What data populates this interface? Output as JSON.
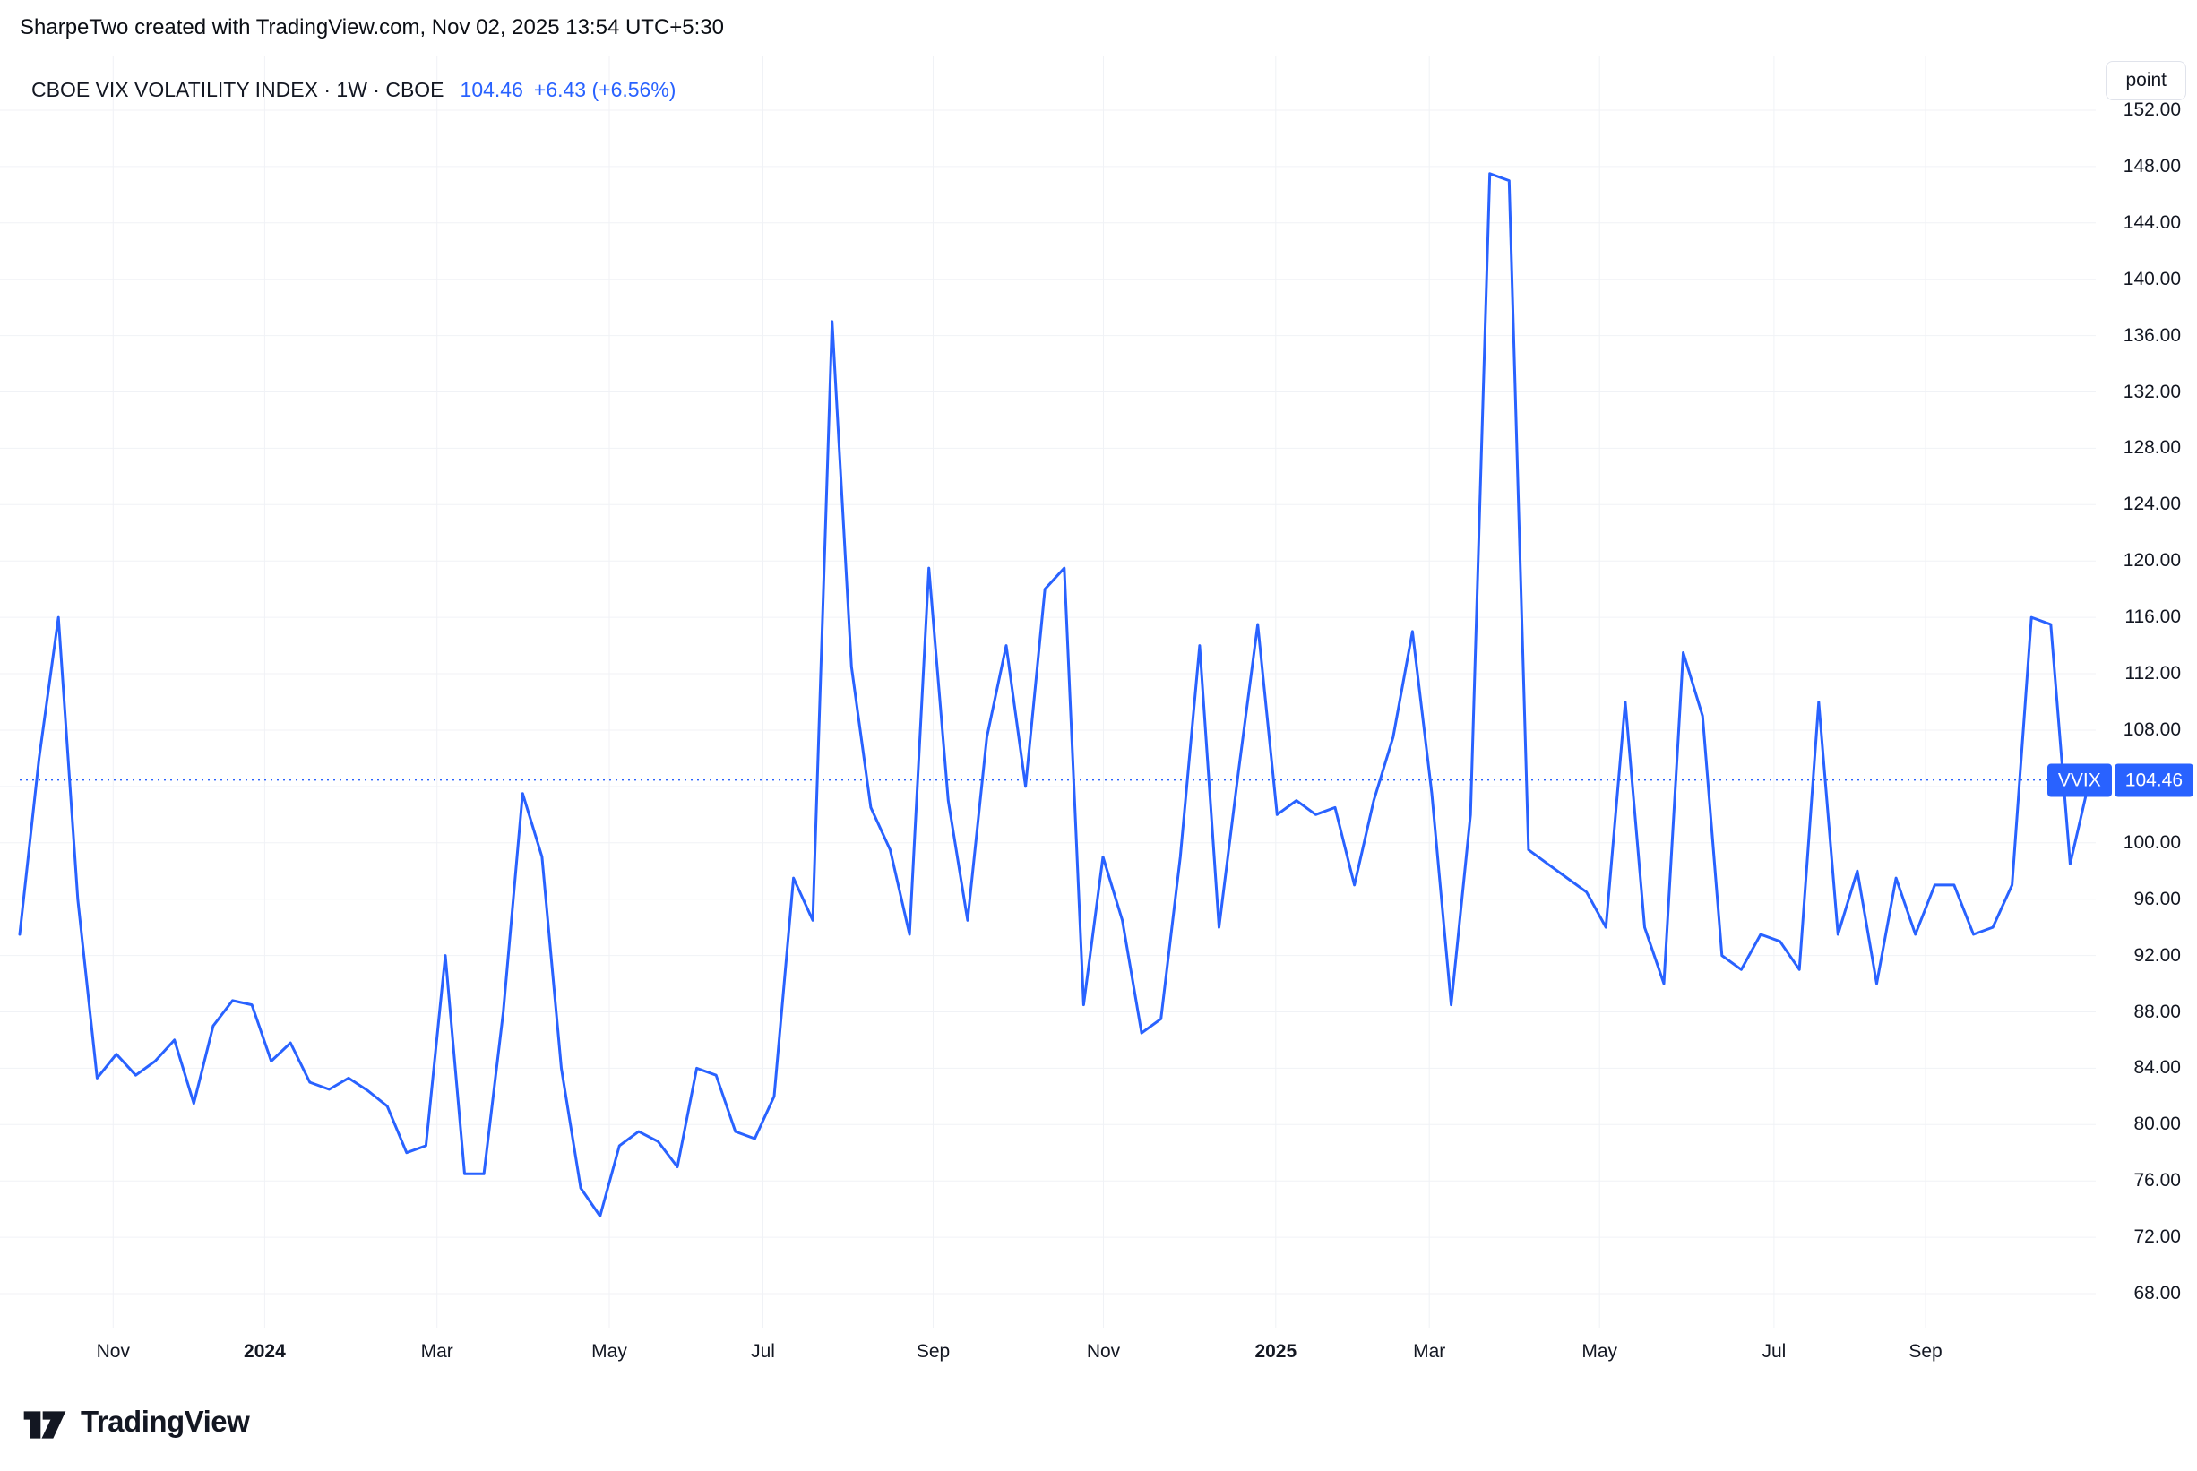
{
  "header": {
    "credit": "SharpeTwo created with TradingView.com, Nov 02, 2025 13:54 UTC+5:30"
  },
  "legend": {
    "title": "CBOE VIX VOLATILITY INDEX · 1W · CBOE",
    "price": "104.46",
    "change": "+6.43 (+6.56%)"
  },
  "price_axis": {
    "unit_button": "point"
  },
  "price_label": {
    "symbol": "VVIX",
    "value": "104.46"
  },
  "footer": {
    "brand": "TradingView"
  },
  "colors": {
    "accent": "#2962FF",
    "text": "#131722",
    "grid": "#F0F2F6",
    "border": "#E0E3EB"
  },
  "chart_data": {
    "type": "line",
    "title": "CBOE VIX VOLATILITY INDEX",
    "symbol": "VVIX",
    "timeframe": "1W",
    "exchange": "CBOE",
    "unit": "point",
    "last_value": 104.46,
    "change": 6.43,
    "change_pct": 6.56,
    "line_color": "#2962FF",
    "grid": true,
    "ylabel": "point",
    "y_axis": {
      "min": 68,
      "max": 152,
      "step": 4
    },
    "x_ticks": [
      {
        "label": "Nov",
        "pos": 0.045,
        "bold": false
      },
      {
        "label": "2024",
        "pos": 0.118,
        "bold": true
      },
      {
        "label": "Mar",
        "pos": 0.201,
        "bold": false
      },
      {
        "label": "May",
        "pos": 0.284,
        "bold": false
      },
      {
        "label": "Jul",
        "pos": 0.358,
        "bold": false
      },
      {
        "label": "Sep",
        "pos": 0.44,
        "bold": false
      },
      {
        "label": "Nov",
        "pos": 0.522,
        "bold": false
      },
      {
        "label": "2025",
        "pos": 0.605,
        "bold": true
      },
      {
        "label": "Mar",
        "pos": 0.679,
        "bold": false
      },
      {
        "label": "May",
        "pos": 0.761,
        "bold": false
      },
      {
        "label": "Jul",
        "pos": 0.845,
        "bold": false
      },
      {
        "label": "Sep",
        "pos": 0.918,
        "bold": false
      }
    ],
    "x_range_note": "weekly closes, mid-Oct 2023 through Nov 2025",
    "values": [
      93.5,
      106,
      116,
      96,
      83.3,
      85,
      83.5,
      84.5,
      86,
      81.5,
      87,
      88.8,
      88.5,
      84.5,
      85.8,
      83,
      82.5,
      83.3,
      82.4,
      81.3,
      78,
      78.5,
      92,
      76.5,
      76.5,
      88,
      103.5,
      99,
      84,
      75.5,
      73.5,
      78.5,
      79.5,
      78.8,
      77,
      84,
      83.5,
      79.5,
      79,
      82,
      97.5,
      94.5,
      137,
      112.5,
      102.5,
      99.5,
      93.5,
      119.5,
      103,
      94.5,
      107.5,
      114,
      104,
      118,
      119.5,
      88.5,
      99,
      94.5,
      86.5,
      87.5,
      99,
      114,
      94,
      105,
      115.5,
      102,
      103,
      102,
      102.5,
      97,
      103,
      107.5,
      115,
      103.5,
      88.5,
      102,
      147.5,
      147,
      99.5,
      98.5,
      97.5,
      96.5,
      94,
      110,
      94,
      90,
      113.5,
      109,
      92,
      91,
      93.5,
      93,
      91,
      110,
      93.5,
      98,
      90,
      97.5,
      93.5,
      97,
      97,
      93.5,
      94,
      97,
      116,
      115.5,
      98.5,
      104.46
    ]
  }
}
